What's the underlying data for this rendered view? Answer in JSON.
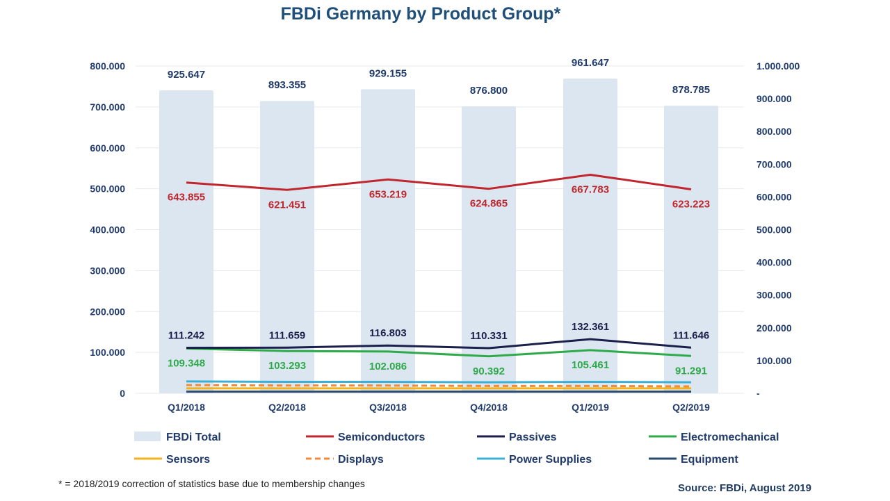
{
  "title": "FBDi Germany by Product Group*",
  "footnote": "* = 2018/2019 correction of statistics base due to membership changes",
  "source": "Source: FBDi, August 2019",
  "chart_data": {
    "type": "bar",
    "categories": [
      "Q1/2018",
      "Q2/2018",
      "Q3/2018",
      "Q4/2018",
      "Q1/2019",
      "Q2/2019"
    ],
    "y_left": {
      "min": 0,
      "max": 800000,
      "step": 100000,
      "tick_labels": [
        "0",
        "100.000",
        "200.000",
        "300.000",
        "400.000",
        "500.000",
        "600.000",
        "700.000",
        "800.000"
      ]
    },
    "y_right": {
      "min": 0,
      "max": 1000000,
      "step": 100000,
      "tick_labels": [
        "-",
        "100.000",
        "200.000",
        "300.000",
        "400.000",
        "500.000",
        "600.000",
        "700.000",
        "800.000",
        "900.000",
        "1.000.000"
      ]
    },
    "bars": {
      "name": "FBDi Total",
      "axis": "right",
      "color": "#dce6f0",
      "values": [
        925647,
        893355,
        929155,
        876800,
        961647,
        878785
      ],
      "labels": [
        "925.647",
        "893.355",
        "929.155",
        "876.800",
        "961.647",
        "878.785"
      ]
    },
    "series": [
      {
        "name": "Semiconductors",
        "axis": "right",
        "color": "#c0262d",
        "dash": false,
        "values": [
          643855,
          621451,
          653219,
          624865,
          667783,
          623223
        ],
        "labels": [
          "643.855",
          "621.451",
          "653.219",
          "624.865",
          "667.783",
          "623.223"
        ],
        "label_pos": "below"
      },
      {
        "name": "Passives",
        "axis": "left",
        "color": "#1b1f4b",
        "dash": false,
        "values": [
          111242,
          111659,
          116803,
          110331,
          132361,
          111646
        ],
        "labels": [
          "111.242",
          "111.659",
          "116.803",
          "110.331",
          "132.361",
          "111.646"
        ],
        "label_pos": "above"
      },
      {
        "name": "Electromechanical",
        "axis": "left",
        "color": "#2eaa4a",
        "dash": false,
        "values": [
          109348,
          103293,
          102086,
          90392,
          105461,
          91291
        ],
        "labels": [
          "109.348",
          "103.293",
          "102.086",
          "90.392",
          "105.461",
          "91.291"
        ],
        "label_pos": "below"
      },
      {
        "name": "Sensors",
        "axis": "left",
        "color": "#f2b21c",
        "dash": false,
        "values": [
          12000,
          12000,
          12000,
          12000,
          12000,
          12000
        ]
      },
      {
        "name": "Displays",
        "axis": "left",
        "color": "#f08a3c",
        "dash": true,
        "values": [
          20000,
          19000,
          19000,
          18000,
          18000,
          17000
        ]
      },
      {
        "name": "Power Supplies",
        "axis": "left",
        "color": "#3bb0d4",
        "dash": false,
        "values": [
          29000,
          28000,
          28000,
          27000,
          28000,
          27000
        ]
      },
      {
        "name": "Equipment",
        "axis": "left",
        "color": "#2a4a6b",
        "dash": false,
        "values": [
          4000,
          4000,
          4000,
          4000,
          4000,
          4000
        ]
      }
    ],
    "legend": {
      "placement": "bottom",
      "entries": [
        "FBDi Total",
        "Semiconductors",
        "Passives",
        "Electromechanical",
        "Sensors",
        "Displays",
        "Power Supplies",
        "Equipment"
      ]
    }
  }
}
